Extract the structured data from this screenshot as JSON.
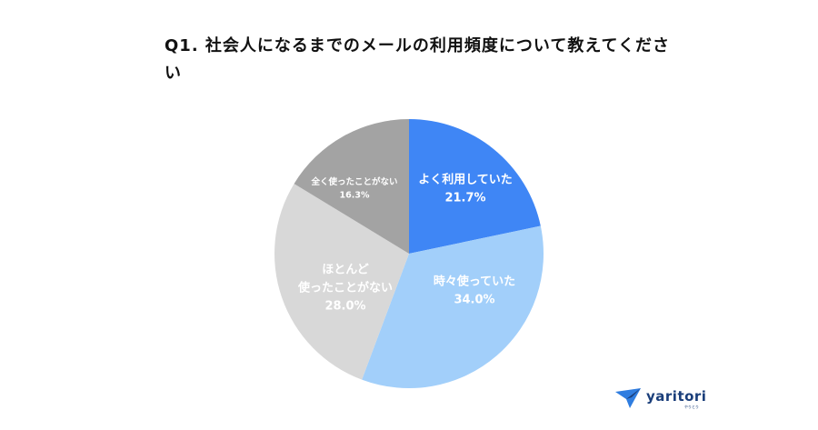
{
  "title": "Q1. 社会人になるまでのメールの利用頻度について教えてください",
  "chart_data": {
    "type": "pie",
    "title": "Q1. 社会人になるまでのメールの利用頻度について教えてください",
    "start": "12 o'clock, clockwise",
    "slices": [
      {
        "label": [
          "よく利用していた"
        ],
        "value": 21.7,
        "display": "21.7%",
        "color": "#3f86f5",
        "font_size": 13
      },
      {
        "label": [
          "時々使っていた"
        ],
        "value": 34.0,
        "display": "34.0%",
        "color": "#a2cffa",
        "font_size": 13
      },
      {
        "label": [
          "ほとんど",
          "使ったことがない"
        ],
        "value": 28.0,
        "display": "28.0%",
        "color": "#d8d8d8",
        "font_size": 13
      },
      {
        "label": [
          "全く使ったことがない"
        ],
        "value": 16.3,
        "display": "16.3%",
        "color": "#a3a3a3",
        "font_size": 9.5
      }
    ]
  },
  "logo": {
    "text": "yaritori",
    "sub": "やりとり",
    "color": "#1a3e7a",
    "accent": "#2f7de0"
  }
}
